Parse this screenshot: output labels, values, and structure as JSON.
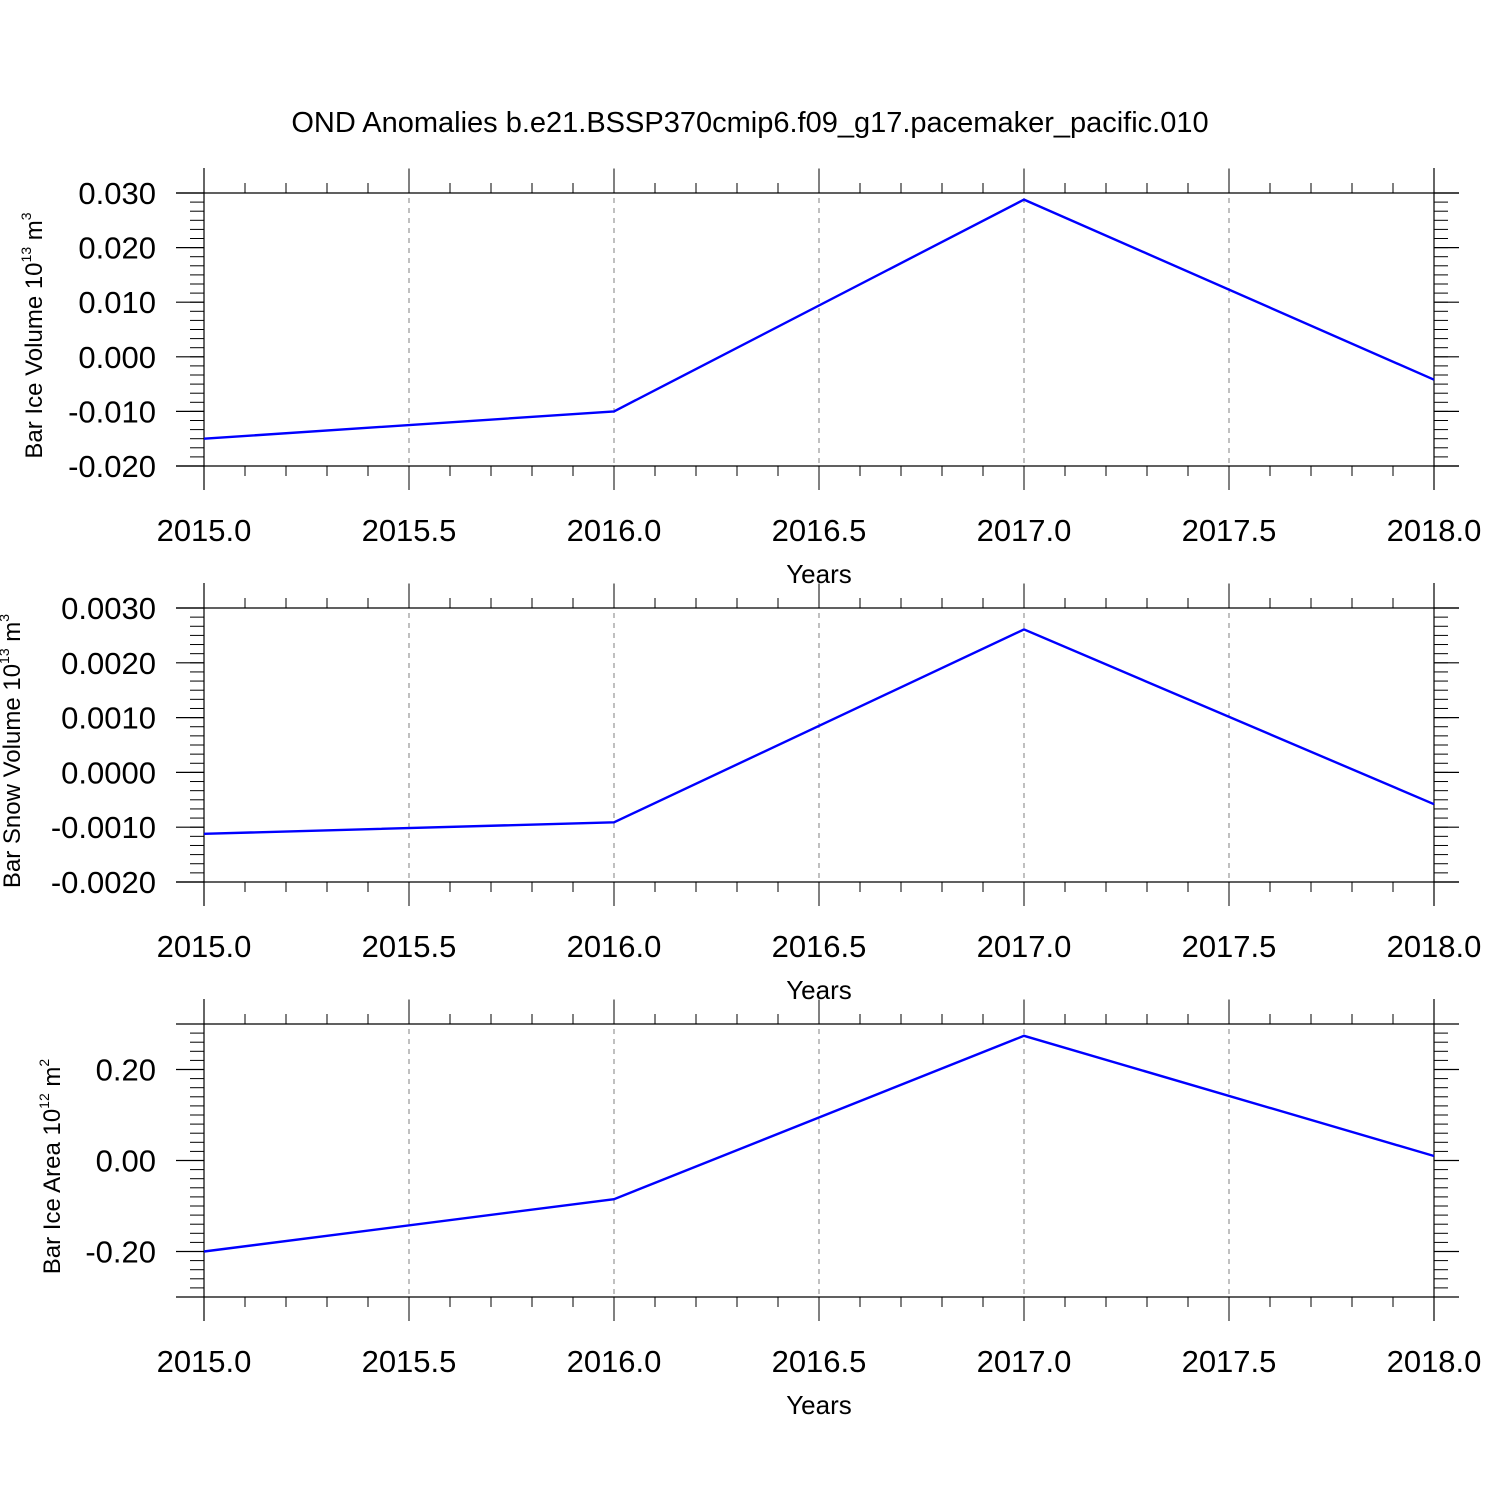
{
  "title": "OND Anomalies b.e21.BSSP370cmip6.f09_g17.pacemaker_pacific.010",
  "colors": {
    "line": "#0000ff",
    "axis": "#000000",
    "grid": "#808080"
  },
  "chart_data": [
    {
      "type": "line",
      "x": [
        2015,
        2016,
        2017,
        2018
      ],
      "series": [
        {
          "values": [
            -0.015,
            -0.01,
            0.0288,
            -0.0042
          ]
        }
      ],
      "xlim": [
        2015,
        2018
      ],
      "ylim": [
        -0.02,
        0.03
      ],
      "xticks": [
        "2015.0",
        "2015.5",
        "2016.0",
        "2016.5",
        "2017.0",
        "2017.5",
        "2018.0"
      ],
      "yticks": [
        "0.030",
        "0.020",
        "0.010",
        "0.000",
        "-0.010",
        "-0.020"
      ],
      "xlabel": "Years",
      "ylabel": {
        "text": "Bar Ice Volume 10",
        "exp": "13",
        "unit": "m",
        "unit_exp": "3"
      },
      "grid": "vertical dashed"
    },
    {
      "type": "line",
      "x": [
        2015,
        2016,
        2017,
        2018
      ],
      "series": [
        {
          "values": [
            -0.00112,
            -0.00091,
            0.00261,
            -0.00058
          ]
        }
      ],
      "xlim": [
        2015,
        2018
      ],
      "ylim": [
        -0.002,
        0.003
      ],
      "xticks": [
        "2015.0",
        "2015.5",
        "2016.0",
        "2016.5",
        "2017.0",
        "2017.5",
        "2018.0"
      ],
      "yticks": [
        "0.0030",
        "0.0020",
        "0.0010",
        "0.0000",
        "-0.0010",
        "-0.0020"
      ],
      "xlabel": "Years",
      "ylabel": {
        "text": "Bar Snow Volume 10",
        "exp": "13",
        "unit": "m",
        "unit_exp": "3"
      },
      "grid": "vertical dashed"
    },
    {
      "type": "line",
      "x": [
        2015,
        2016,
        2017,
        2018
      ],
      "series": [
        {
          "values": [
            -0.2,
            -0.085,
            0.274,
            0.01
          ]
        }
      ],
      "xlim": [
        2015,
        2018
      ],
      "ylim": [
        -0.3,
        0.3
      ],
      "xticks": [
        "2015.0",
        "2015.5",
        "2016.0",
        "2016.5",
        "2017.0",
        "2017.5",
        "2018.0"
      ],
      "yticks": [
        "0.20",
        "0.00",
        "-0.20"
      ],
      "xlabel": "Years",
      "ylabel": {
        "text": "Bar Ice Area 10",
        "exp": "12",
        "unit": "m",
        "unit_exp": "2"
      },
      "grid": "vertical dashed"
    }
  ]
}
